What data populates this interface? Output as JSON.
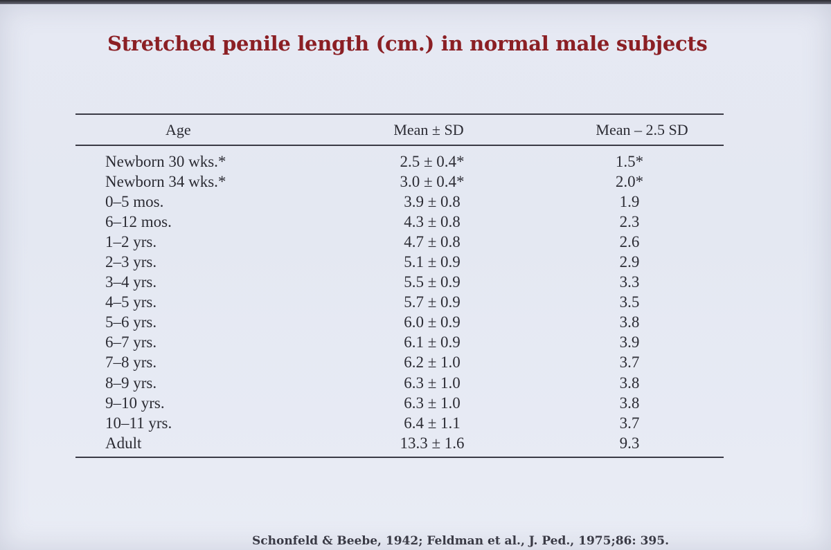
{
  "title": "Stretched penile length (cm.) in normal male subjects",
  "table": {
    "headers": {
      "age": "Age",
      "mean_sd": "Mean ± SD",
      "mean_minus": "Mean – 2.5 SD"
    },
    "rows": [
      {
        "age": "Newborn 30 wks.*",
        "mean_sd": "2.5 ± 0.4*",
        "mean_minus": "1.5*"
      },
      {
        "age": "Newborn 34 wks.*",
        "mean_sd": "3.0 ± 0.4*",
        "mean_minus": "2.0*"
      },
      {
        "age": "0–5 mos.",
        "mean_sd": "3.9 ± 0.8",
        "mean_minus": "1.9"
      },
      {
        "age": "6–12 mos.",
        "mean_sd": "4.3 ± 0.8",
        "mean_minus": "2.3"
      },
      {
        "age": "1–2 yrs.",
        "mean_sd": "4.7 ± 0.8",
        "mean_minus": "2.6"
      },
      {
        "age": "2–3 yrs.",
        "mean_sd": "5.1 ± 0.9",
        "mean_minus": "2.9"
      },
      {
        "age": "3–4 yrs.",
        "mean_sd": "5.5 ± 0.9",
        "mean_minus": "3.3"
      },
      {
        "age": "4–5 yrs.",
        "mean_sd": "5.7 ± 0.9",
        "mean_minus": "3.5"
      },
      {
        "age": "5–6 yrs.",
        "mean_sd": "6.0 ± 0.9",
        "mean_minus": "3.8"
      },
      {
        "age": "6–7 yrs.",
        "mean_sd": "6.1 ± 0.9",
        "mean_minus": "3.9"
      },
      {
        "age": "7–8 yrs.",
        "mean_sd": "6.2 ± 1.0",
        "mean_minus": "3.7"
      },
      {
        "age": "8–9 yrs.",
        "mean_sd": "6.3 ± 1.0",
        "mean_minus": "3.8"
      },
      {
        "age": "9–10 yrs.",
        "mean_sd": "6.3 ± 1.0",
        "mean_minus": "3.8"
      },
      {
        "age": "10–11 yrs.",
        "mean_sd": "6.4 ± 1.1",
        "mean_minus": "3.7"
      },
      {
        "age": "Adult",
        "mean_sd": "13.3 ± 1.6",
        "mean_minus": "9.3"
      }
    ]
  },
  "citation": "Schonfeld & Beebe, 1942; Feldman et al., J. Ped., 1975;86: 395."
}
